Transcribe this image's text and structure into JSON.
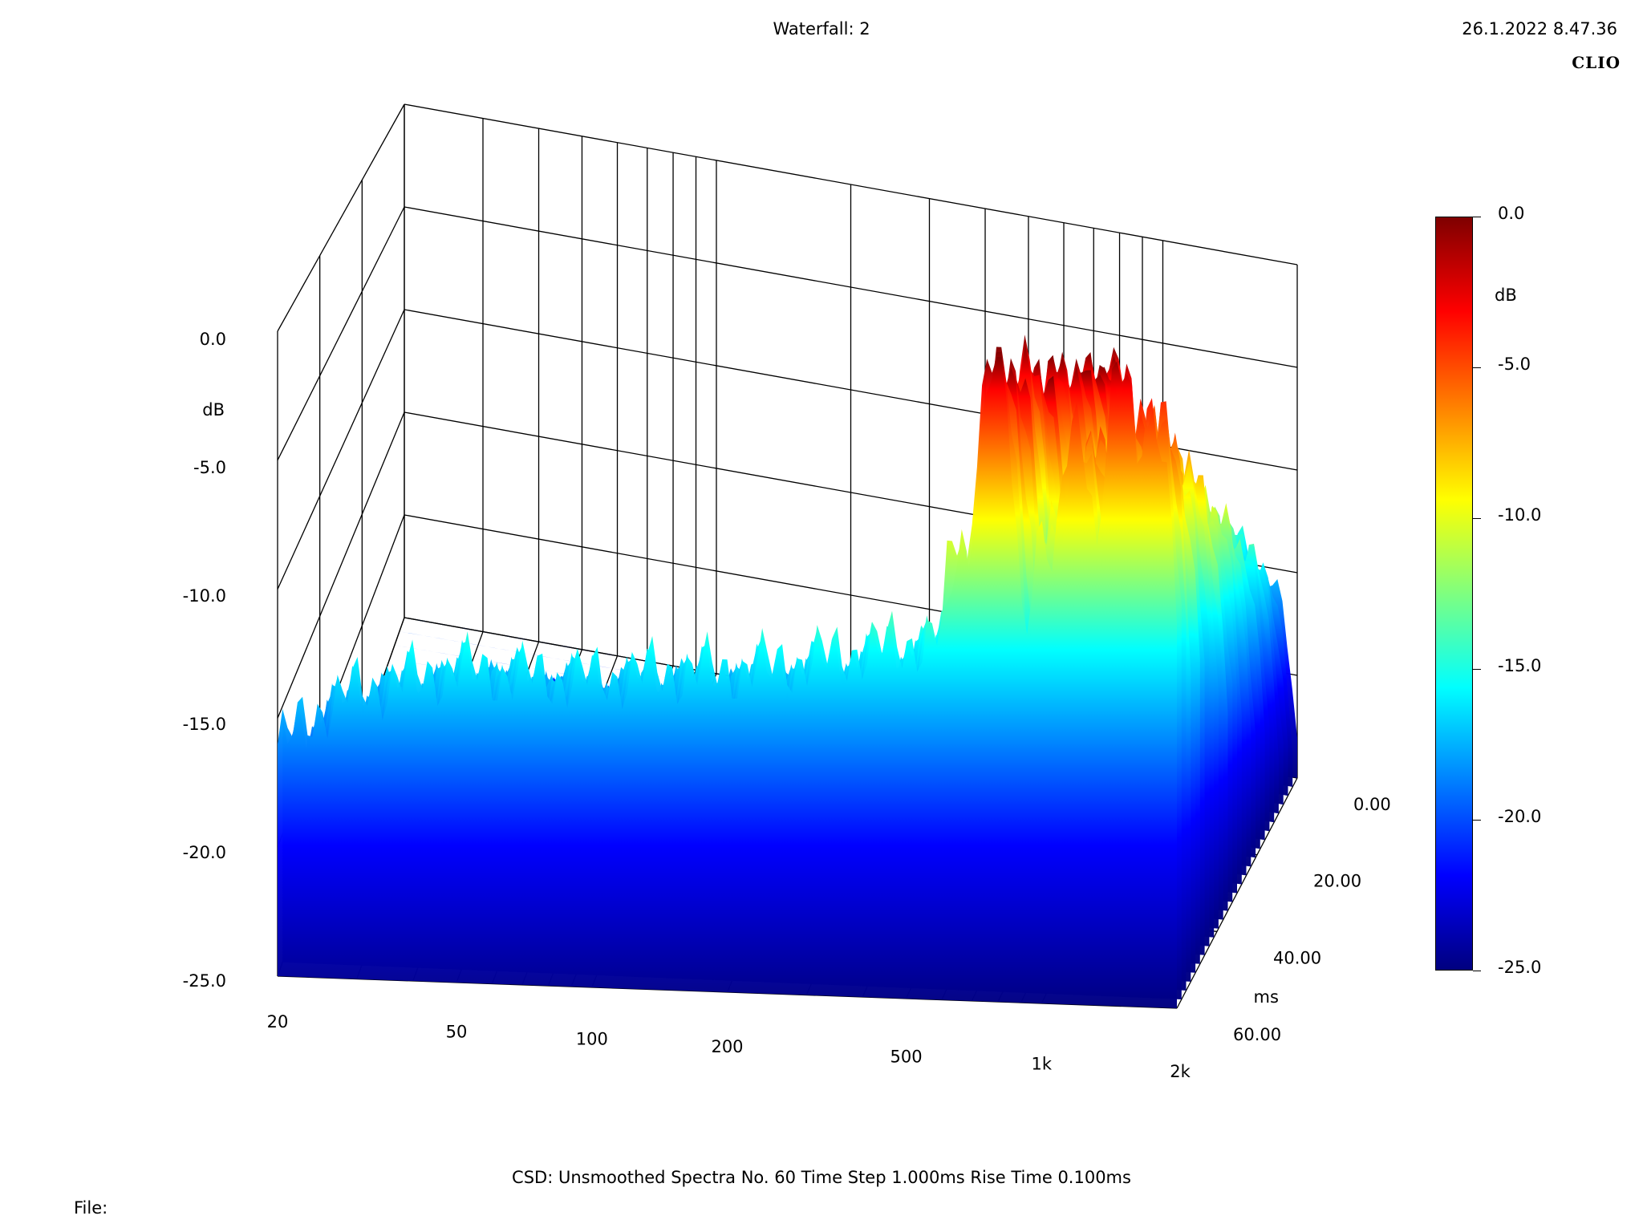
{
  "header": {
    "title": "Waterfall: 2",
    "datetime": "26.1.2022 8.47.36",
    "brand": "CLIO"
  },
  "footer": {
    "info": "CSD:    Unsmoothed    Spectra No. 60    Time Step 1.000ms    Rise Time 0.100ms",
    "file_label": "File:"
  },
  "chart_data": {
    "type": "waterfall",
    "title": "Waterfall: 2",
    "x_axis": {
      "label": "",
      "scale": "log",
      "range": [
        20,
        2000
      ],
      "ticks": [
        {
          "value": 20,
          "label": "20"
        },
        {
          "value": 50,
          "label": "50"
        },
        {
          "value": 100,
          "label": "100"
        },
        {
          "value": 200,
          "label": "200"
        },
        {
          "value": 500,
          "label": "500"
        },
        {
          "value": 1000,
          "label": "1k"
        },
        {
          "value": 2000,
          "label": "2k"
        }
      ]
    },
    "z_axis": {
      "label": "dB",
      "range": [
        -25,
        0
      ],
      "ticks": [
        "0.0",
        "-5.0",
        "-10.0",
        "-15.0",
        "-20.0",
        "-25.0"
      ]
    },
    "y_axis": {
      "label": "ms",
      "range": [
        0,
        60
      ],
      "ticks": [
        "0.00",
        "20.00",
        "40.00",
        "60.00"
      ]
    },
    "colorbar": {
      "label": "dB",
      "range": [
        -25,
        0
      ],
      "ticks": [
        "0.0",
        "-5.0",
        "-10.0",
        "-15.0",
        "-20.0",
        "-25.0"
      ],
      "colors": [
        "#00007f",
        "#0000ff",
        "#007fff",
        "#00ffff",
        "#7fff7f",
        "#ffff00",
        "#ff7f00",
        "#ff0000",
        "#7f0000"
      ]
    },
    "front_spectrum": [
      {
        "f": 20,
        "db": -16.0
      },
      {
        "f": 25,
        "db": -14.5
      },
      {
        "f": 30,
        "db": -13.8
      },
      {
        "f": 40,
        "db": -13.2
      },
      {
        "f": 50,
        "db": -12.8
      },
      {
        "f": 70,
        "db": -13.0
      },
      {
        "f": 100,
        "db": -13.0
      },
      {
        "f": 150,
        "db": -12.6
      },
      {
        "f": 200,
        "db": -12.5
      },
      {
        "f": 300,
        "db": -12.0
      },
      {
        "f": 400,
        "db": -11.5
      },
      {
        "f": 500,
        "db": -11.2
      },
      {
        "f": 600,
        "db": -10.8
      },
      {
        "f": 700,
        "db": -11.0
      },
      {
        "f": 800,
        "db": -10.5
      },
      {
        "f": 900,
        "db": -10.0
      },
      {
        "f": 1000,
        "db": -11.5
      },
      {
        "f": 1100,
        "db": -10.5
      },
      {
        "f": 1200,
        "db": -9.5
      },
      {
        "f": 1400,
        "db": -8.5
      },
      {
        "f": 1600,
        "db": -8.0
      },
      {
        "f": 1800,
        "db": -9.0
      },
      {
        "f": 2000,
        "db": -10.0
      }
    ],
    "peaks": [
      {
        "f": 650,
        "db": -7.0
      },
      {
        "f": 780,
        "db": 0.0
      },
      {
        "f": 1000,
        "db": -6.5
      },
      {
        "f": 1200,
        "db": -2.5
      },
      {
        "f": 1500,
        "db": -0.5
      },
      {
        "f": 1750,
        "db": -1.5
      }
    ]
  }
}
